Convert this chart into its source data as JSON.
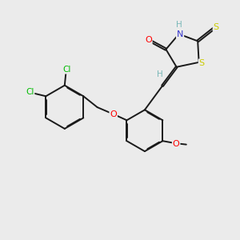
{
  "background_color": "#ebebeb",
  "atom_colors": {
    "C": "#000000",
    "H": "#7ab8b8",
    "N": "#3636cc",
    "O": "#ff0000",
    "S": "#cccc00",
    "Cl": "#00bb00"
  },
  "bond_color": "#1a1a1a",
  "figsize": [
    3.0,
    3.0
  ],
  "dpi": 100
}
